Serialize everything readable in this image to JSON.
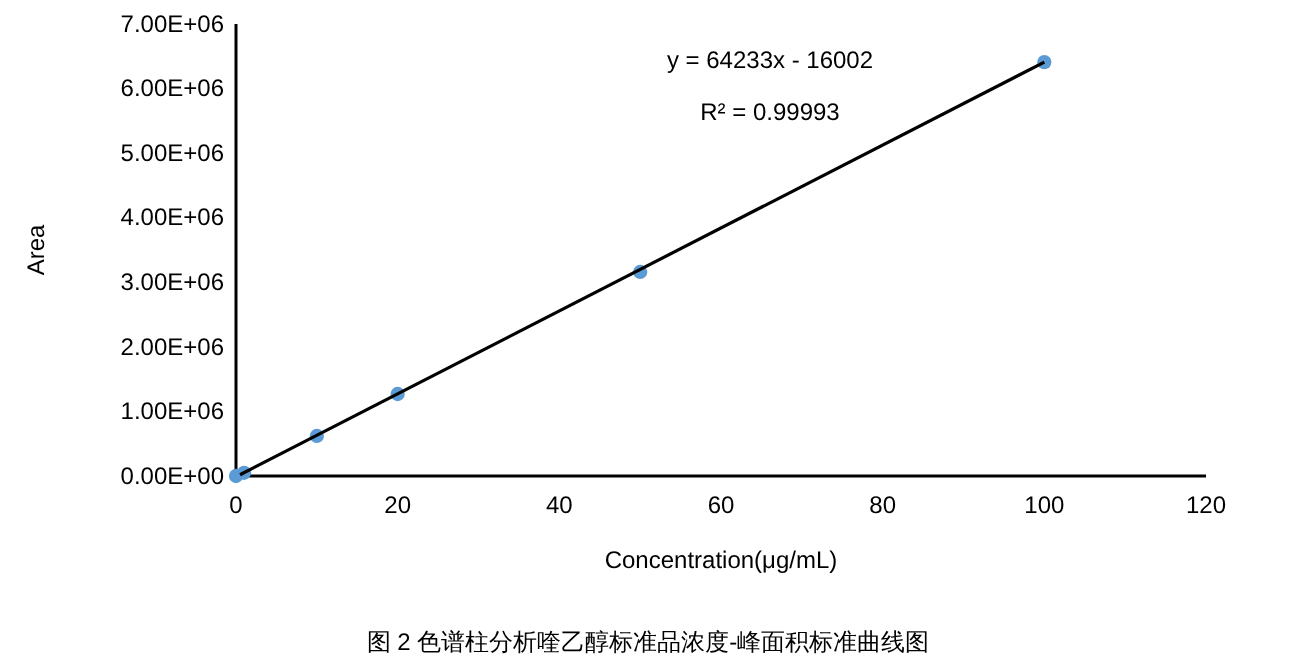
{
  "chart_data": {
    "type": "scatter",
    "xlabel": "Concentration(μg/mL)",
    "ylabel": "Area",
    "annotations": [
      "y = 64233x - 16002",
      "R² = 0.99993",
      "图 2 色谱柱分析喹乙醇标准品浓度-峰面积标准曲线图"
    ],
    "series": [
      {
        "color": "#5b9bd5",
        "marker": "circle",
        "x": [
          0,
          1,
          10,
          20,
          50,
          100
        ],
        "values": [
          0,
          50000,
          620000,
          1270000,
          3160000,
          6410000
        ]
      },
      {
        "type": "line",
        "color": "#000000",
        "x": [
          0.5,
          100
        ],
        "values": [
          20000,
          6410000
        ]
      }
    ],
    "xlim": [
      0,
      120
    ],
    "xticks": [
      0,
      20,
      40,
      60,
      80,
      100,
      120
    ],
    "ylim": [
      0,
      7000000
    ],
    "yticks": [
      {
        "value": 0,
        "label": "0.00E+00"
      },
      {
        "value": 1000000,
        "label": "1.00E+06"
      },
      {
        "value": 2000000,
        "label": "2.00E+06"
      },
      {
        "value": 3000000,
        "label": "3.00E+06"
      },
      {
        "value": 4000000,
        "label": "4.00E+06"
      },
      {
        "value": 5000000,
        "label": "5.00E+06"
      },
      {
        "value": 6000000,
        "label": "6.00E+06"
      },
      {
        "value": 7000000,
        "label": "7.00E+06"
      }
    ],
    "grid": false
  }
}
